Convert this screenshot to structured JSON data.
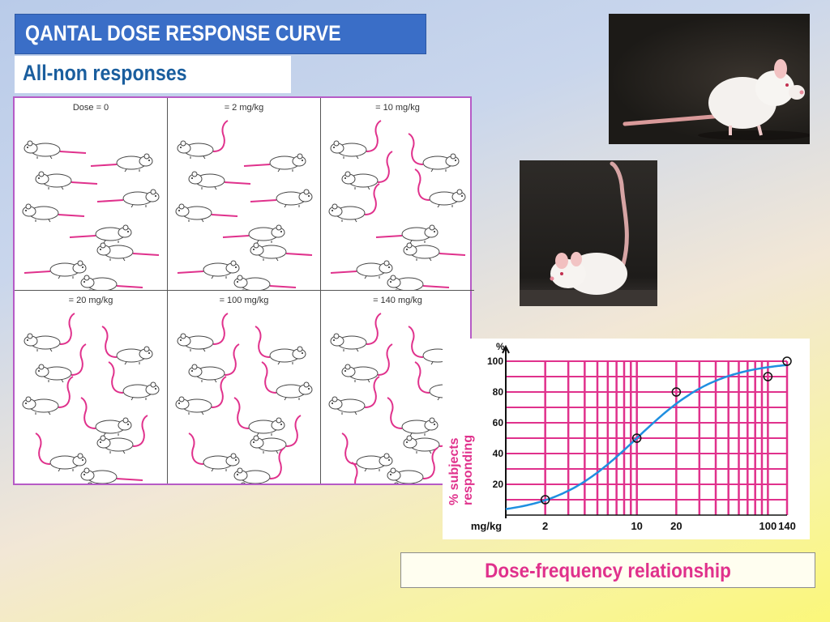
{
  "slide": {
    "title": "QANTAL DOSE RESPONSE CURVE",
    "subtitle": "All-non responses",
    "caption": "Dose-frequency relationship"
  },
  "panels": [
    {
      "dose_label": "Dose = 0",
      "responding": 0
    },
    {
      "dose_label": "= 2 mg/kg",
      "responding": 1
    },
    {
      "dose_label": "= 10 mg/kg",
      "responding": 5
    },
    {
      "dose_label": "= 20 mg/kg",
      "responding": 8
    },
    {
      "dose_label": "= 100 mg/kg",
      "responding": 9
    },
    {
      "dose_label": "= 140 mg/kg",
      "responding": 10
    }
  ],
  "colors": {
    "tail": "#e0318c",
    "accent_blue": "#3a6ec7",
    "curve": "#1f8fe0",
    "grid": "#e0318c"
  },
  "chart_data": {
    "type": "scatter",
    "title": "",
    "xlabel": "mg/kg",
    "ylabel": "% subjects responding",
    "y_unit": "%",
    "x_scale": "log",
    "x_ticks": [
      "2",
      "10",
      "20",
      "100",
      "140"
    ],
    "y_ticks": [
      "20",
      "40",
      "60",
      "80",
      "100"
    ],
    "ylim": [
      0,
      100
    ],
    "series": [
      {
        "x": [
          2,
          10,
          20,
          100,
          140
        ],
        "y": [
          10,
          50,
          80,
          90,
          100
        ]
      }
    ],
    "fit_curve": true
  }
}
